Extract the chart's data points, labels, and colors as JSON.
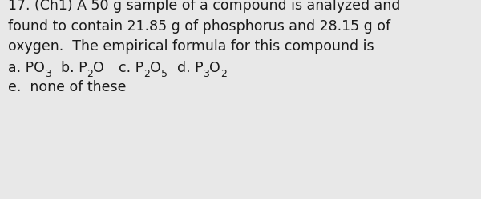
{
  "background_color": "#e8e8e8",
  "text_color": "#1a1a1a",
  "question_line1": "17. (Ch1) A 50 g sample of a compound is analyzed and",
  "question_line2": "found to contain 21.85 g of phosphorus and 28.15 g of",
  "question_line3": "oxygen.  The empirical formula for this compound is",
  "font_size_main": 12.5,
  "font_size_sub": 9.0,
  "font_family": "DejaVu Sans"
}
